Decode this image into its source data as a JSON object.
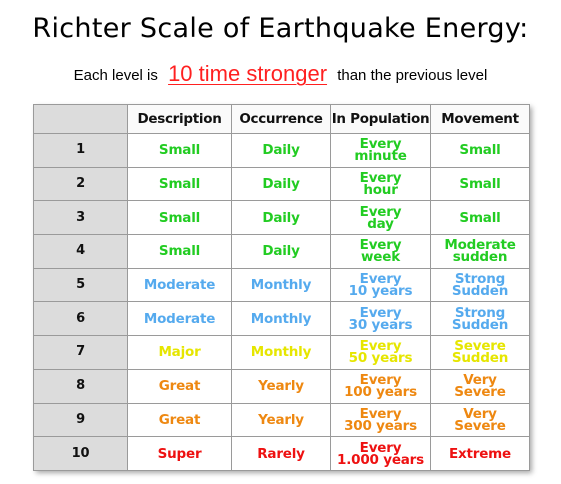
{
  "title": "Richter Scale of Earthquake Energy:",
  "subtitle": {
    "before": "Each level is",
    "emphasis": "10 time stronger",
    "after": "than the previous level"
  },
  "table": {
    "headers": [
      "",
      "Description",
      "Occurrence",
      "In Population",
      "Movement"
    ],
    "rows": [
      {
        "level": "1",
        "description": "Small",
        "occurrence": "Daily",
        "population": "Every\nminute",
        "movement": "Small",
        "color": "#22cc22"
      },
      {
        "level": "2",
        "description": "Small",
        "occurrence": "Daily",
        "population": "Every\nhour",
        "movement": "Small",
        "color": "#22cc22"
      },
      {
        "level": "3",
        "description": "Small",
        "occurrence": "Daily",
        "population": "Every\nday",
        "movement": "Small",
        "color": "#22cc22"
      },
      {
        "level": "4",
        "description": "Small",
        "occurrence": "Daily",
        "population": "Every\nweek",
        "movement": "Moderate\nsudden",
        "color": "#22cc22"
      },
      {
        "level": "5",
        "description": "Moderate",
        "occurrence": "Monthly",
        "population": "Every\n10 years",
        "movement": "Strong\nSudden",
        "color": "#55aaee"
      },
      {
        "level": "6",
        "description": "Moderate",
        "occurrence": "Monthly",
        "population": "Every\n30 years",
        "movement": "Strong\nSudden",
        "color": "#55aaee"
      },
      {
        "level": "7",
        "description": "Major",
        "occurrence": "Monthly",
        "population": "Every\n50 years",
        "movement": "Severe\nSudden",
        "color": "#e6e600"
      },
      {
        "level": "8",
        "description": "Great",
        "occurrence": "Yearly",
        "population": "Every\n100 years",
        "movement": "Very\nSevere",
        "color": "#ee8811"
      },
      {
        "level": "9",
        "description": "Great",
        "occurrence": "Yearly",
        "population": "Every\n300 years",
        "movement": "Very\nSevere",
        "color": "#ee8811"
      },
      {
        "level": "10",
        "description": "Super",
        "occurrence": "Rarely",
        "population": "Every\n1.000 years",
        "movement": "Extreme",
        "color": "#ee1111"
      }
    ]
  }
}
